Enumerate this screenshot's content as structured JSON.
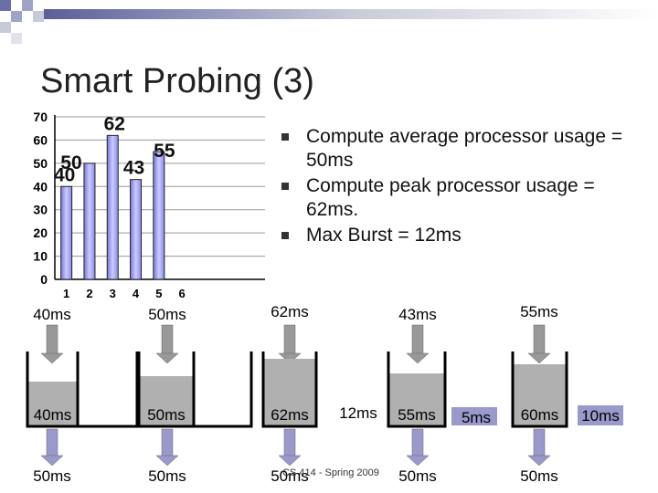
{
  "title": "Smart Probing (3)",
  "chart_data": {
    "type": "bar",
    "categories": [
      "1",
      "2",
      "3",
      "4",
      "5",
      "6"
    ],
    "values": [
      40,
      50,
      62,
      43,
      55,
      null
    ],
    "color": "#9999ff",
    "ylim": [
      0,
      70
    ],
    "yticks": [
      0,
      10,
      20,
      30,
      40,
      50,
      60,
      70
    ],
    "grid": true
  },
  "bullets": [
    "Compute average processor usage = 50ms",
    "Compute peak processor usage = 62ms.",
    "Max Burst = 12ms"
  ],
  "diagram": {
    "inputs": [
      "40ms",
      "50ms",
      "62ms",
      "43ms",
      "55ms"
    ],
    "buckets": [
      "40ms",
      "50ms",
      "62ms",
      "55ms",
      "60ms"
    ],
    "overflow": [
      "12ms",
      "5ms",
      "10ms"
    ],
    "outputs": [
      "50ms",
      "50ms",
      "50ms",
      "50ms",
      "50ms"
    ]
  },
  "footer": "CS 414 - Spring 2009"
}
